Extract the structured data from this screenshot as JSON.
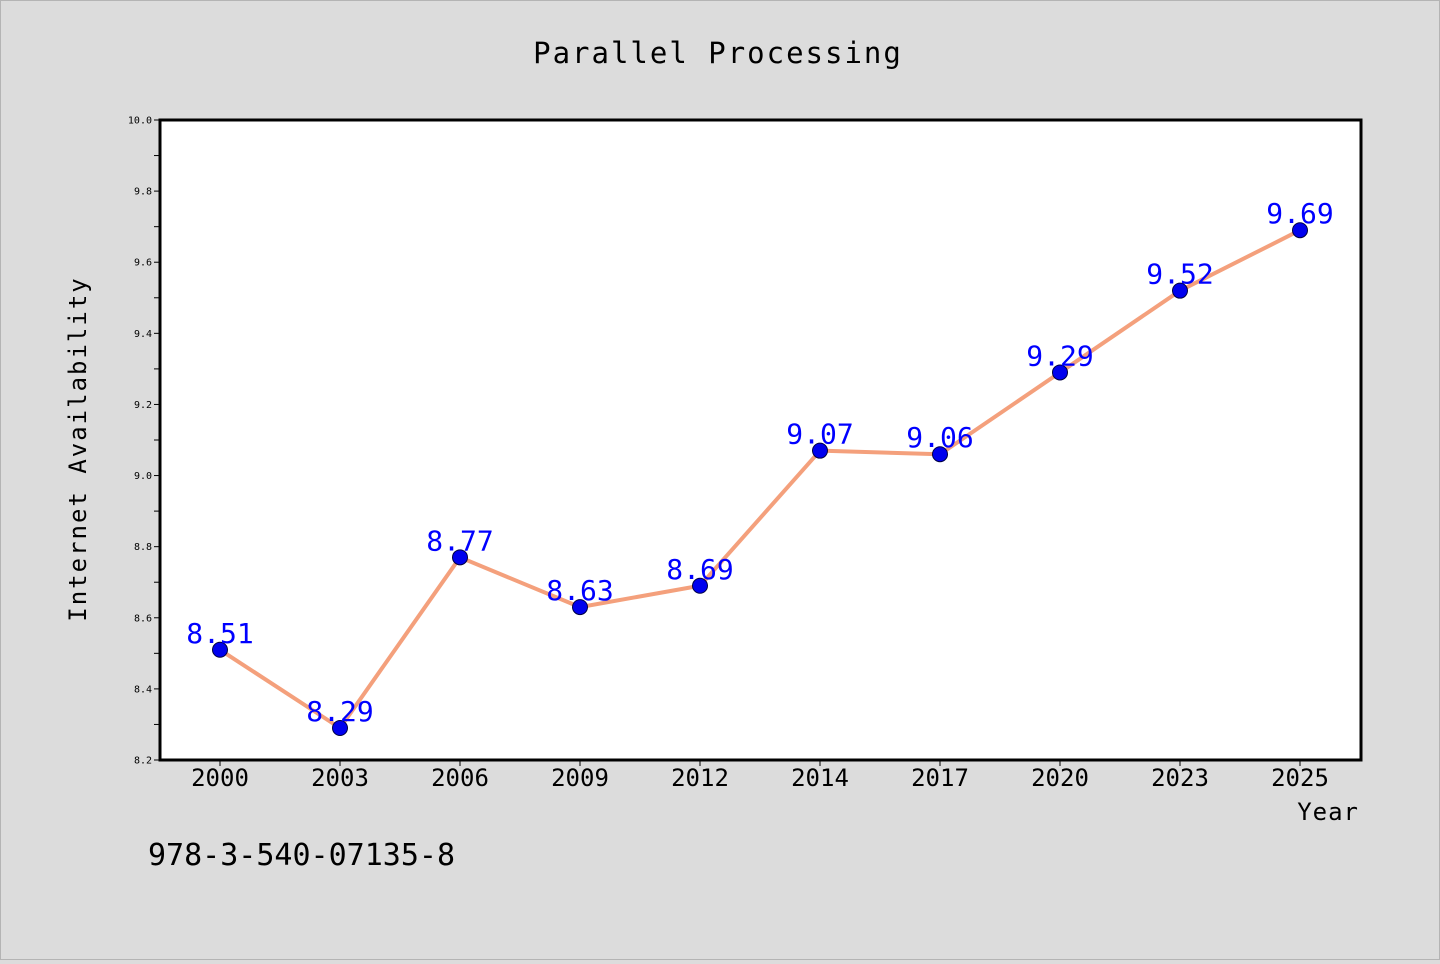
{
  "chart_data": {
    "type": "line",
    "title": "Parallel Processing",
    "xlabel": "Year",
    "ylabel": "Internet Availability",
    "categories": [
      "2000",
      "2003",
      "2006",
      "2009",
      "2012",
      "2014",
      "2017",
      "2020",
      "2023",
      "2025"
    ],
    "series": [
      {
        "values": [
          8.51,
          8.29,
          8.77,
          8.63,
          8.69,
          9.07,
          9.06,
          9.29,
          9.52,
          9.69
        ],
        "labels": [
          "8.51",
          "8.29",
          "8.77",
          "8.63",
          "8.69",
          "9.07",
          "9.06",
          "9.29",
          "9.52",
          "9.69"
        ]
      }
    ],
    "ylim": [
      8.2,
      10.0
    ],
    "yticks": [
      "8.2",
      "8.4",
      "8.6",
      "8.8",
      "9.0",
      "9.2",
      "9.4",
      "9.6",
      "9.8",
      "10.0"
    ],
    "grid": false,
    "colors": {
      "background": "#dcdcdc",
      "plot_background": "#ffffff",
      "line": "#f4a07c",
      "marker": "#0000ee",
      "data_label": "#0000ff",
      "text": "#000000"
    }
  },
  "footer": {
    "code": "978-3-540-07135-8"
  }
}
